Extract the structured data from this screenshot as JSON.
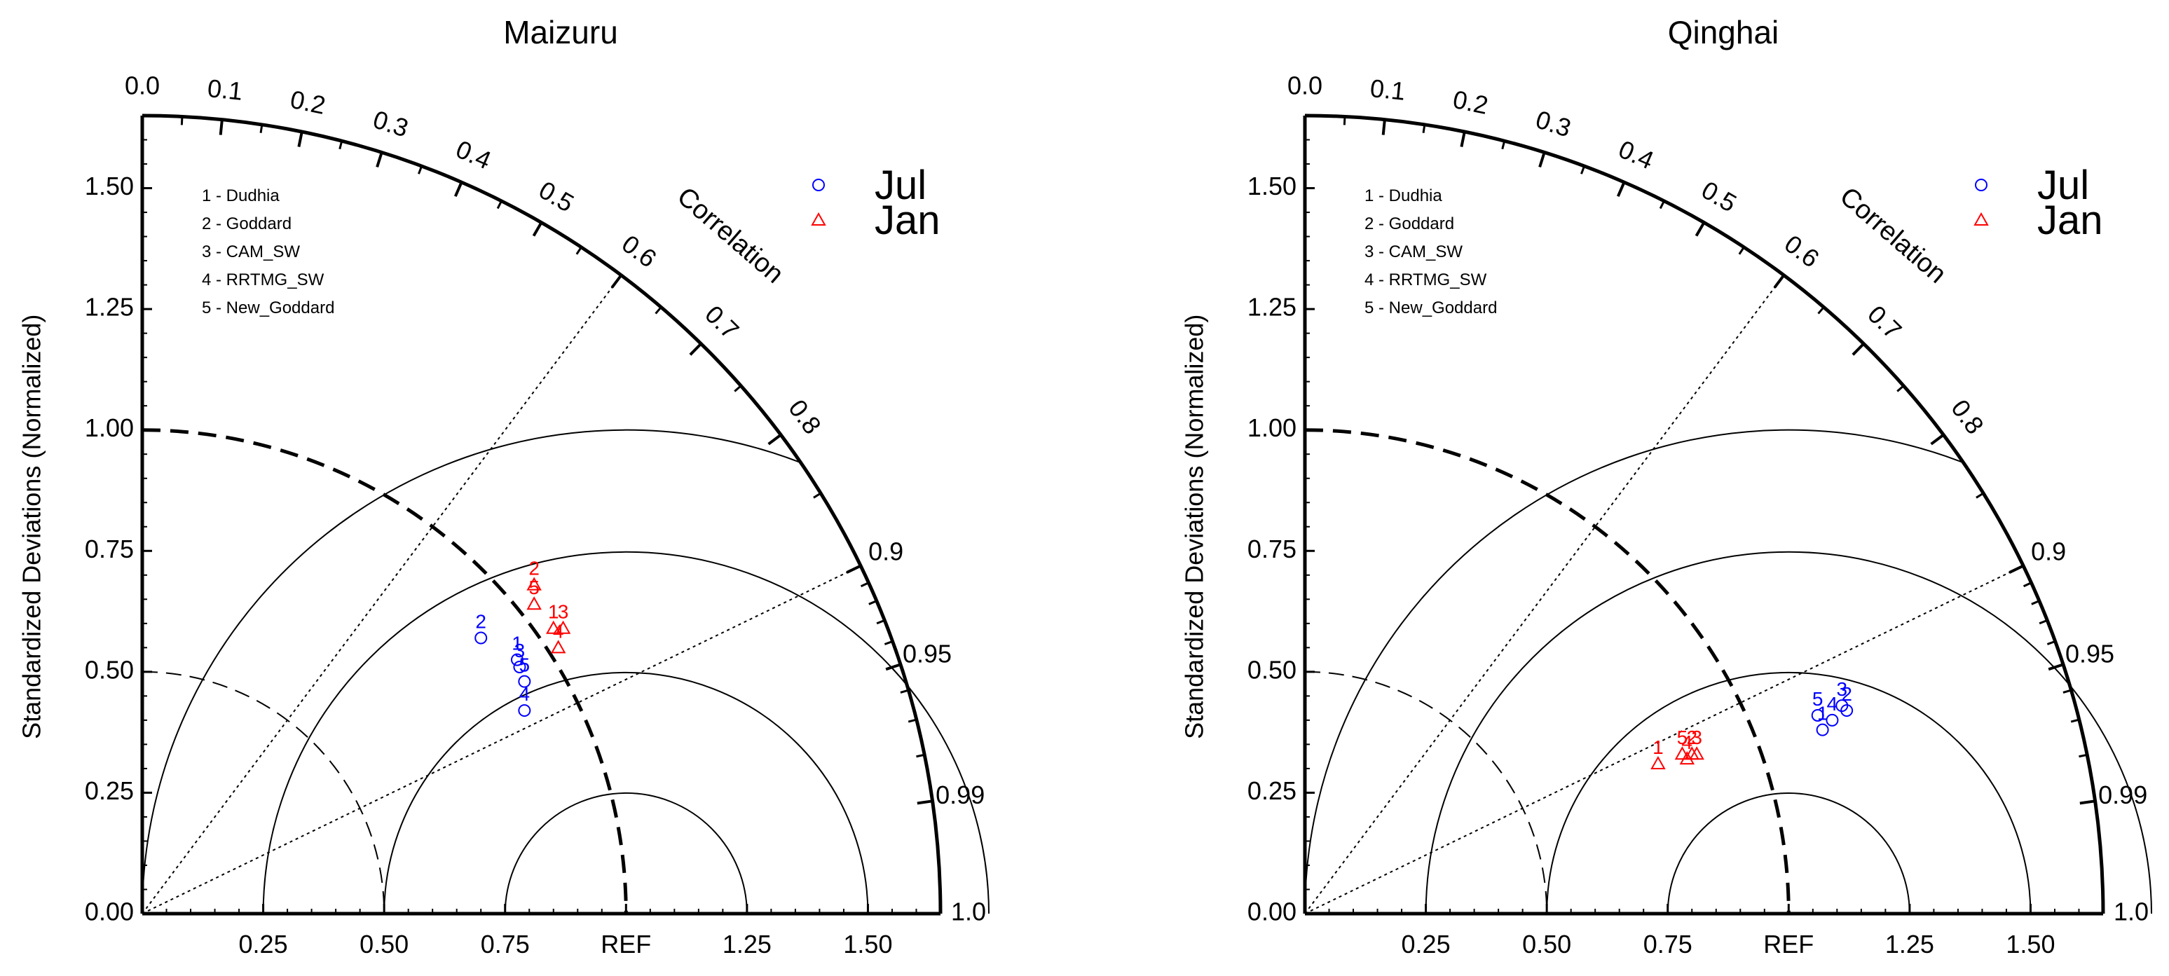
{
  "chart_data": [
    {
      "type": "taylor",
      "title": "Maizuru",
      "ylabel": "Standardized Deviations (Normalized)",
      "correlation_label": "Correlation",
      "std_range": [
        0,
        1.65
      ],
      "ref_label": "REF",
      "ytick_labels": [
        "0.00",
        "0.25",
        "0.50",
        "0.75",
        "1.00",
        "1.25",
        "1.50"
      ],
      "xtick_labels": [
        "0.25",
        "0.50",
        "0.75",
        "REF",
        "1.25",
        "1.50"
      ],
      "correlation_labels": [
        "0.0",
        "0.1",
        "0.2",
        "0.3",
        "0.4",
        "0.5",
        "0.6",
        "0.7",
        "0.8",
        "0.9",
        "0.95",
        "0.99",
        "1.0"
      ],
      "models": [
        "1 - Dudhia",
        "2 - Goddard",
        "3 - CAM_SW",
        "4 - RRTMG_SW",
        "5 - New_Goddard"
      ],
      "series": [
        {
          "name": "Jul",
          "marker": "circle",
          "color": "#0000ff",
          "points": [
            {
              "label": "1",
              "x": 0.775,
              "y": 0.525
            },
            {
              "label": "2",
              "x": 0.7,
              "y": 0.57
            },
            {
              "label": "3",
              "x": 0.78,
              "y": 0.51
            },
            {
              "label": "4",
              "x": 0.79,
              "y": 0.42
            },
            {
              "label": "5",
              "x": 0.79,
              "y": 0.48
            }
          ]
        },
        {
          "name": "Jan",
          "marker": "triangle",
          "color": "#ff0000",
          "points": [
            {
              "label": "1",
              "x": 0.85,
              "y": 0.59
            },
            {
              "label": "2",
              "x": 0.81,
              "y": 0.68
            },
            {
              "label": "3",
              "x": 0.87,
              "y": 0.59
            },
            {
              "label": "4",
              "x": 0.86,
              "y": 0.55
            },
            {
              "label": "5",
              "x": 0.81,
              "y": 0.64
            }
          ]
        }
      ]
    },
    {
      "type": "taylor",
      "title": "Qinghai",
      "ylabel": "Standardized Deviations (Normalized)",
      "correlation_label": "Correlation",
      "std_range": [
        0,
        1.65
      ],
      "ref_label": "REF",
      "ytick_labels": [
        "0.00",
        "0.25",
        "0.50",
        "0.75",
        "1.00",
        "1.25",
        "1.50"
      ],
      "xtick_labels": [
        "0.25",
        "0.50",
        "0.75",
        "REF",
        "1.25",
        "1.50"
      ],
      "correlation_labels": [
        "0.0",
        "0.1",
        "0.2",
        "0.3",
        "0.4",
        "0.5",
        "0.6",
        "0.7",
        "0.8",
        "0.9",
        "0.95",
        "0.99",
        "1.0"
      ],
      "models": [
        "1 - Dudhia",
        "2 - Goddard",
        "3 - CAM_SW",
        "4 - RRTMG_SW",
        "5 - New_Goddard"
      ],
      "series": [
        {
          "name": "Jul",
          "marker": "circle",
          "color": "#0000ff",
          "points": [
            {
              "label": "1",
              "x": 1.07,
              "y": 0.38
            },
            {
              "label": "2",
              "x": 1.12,
              "y": 0.42
            },
            {
              "label": "3",
              "x": 1.11,
              "y": 0.43
            },
            {
              "label": "4",
              "x": 1.09,
              "y": 0.4
            },
            {
              "label": "5",
              "x": 1.06,
              "y": 0.41
            }
          ]
        },
        {
          "name": "Jan",
          "marker": "triangle",
          "color": "#ff0000",
          "points": [
            {
              "label": "1",
              "x": 0.73,
              "y": 0.31
            },
            {
              "label": "2",
              "x": 0.8,
              "y": 0.33
            },
            {
              "label": "3",
              "x": 0.81,
              "y": 0.33
            },
            {
              "label": "4",
              "x": 0.79,
              "y": 0.32
            },
            {
              "label": "5",
              "x": 0.78,
              "y": 0.33
            }
          ]
        }
      ]
    }
  ]
}
